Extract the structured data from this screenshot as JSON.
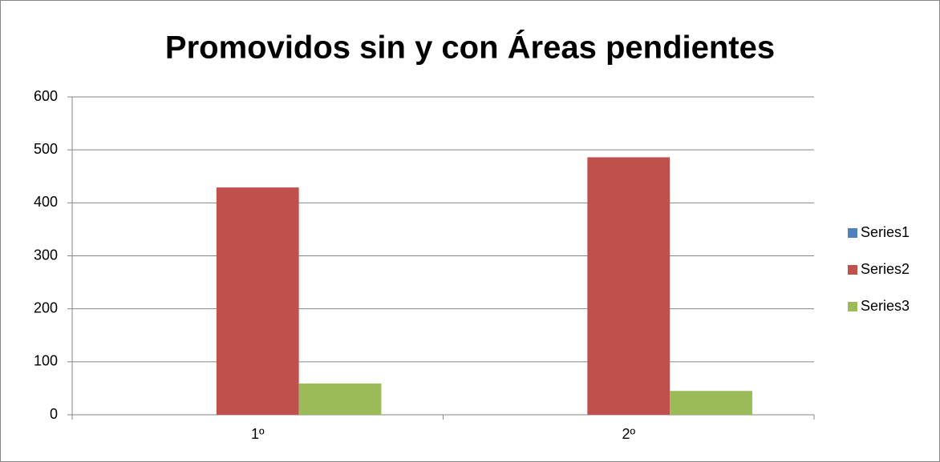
{
  "chart_data": {
    "type": "bar",
    "title": "Promovidos sin y con Áreas pendientes",
    "categories": [
      "1º",
      "2º"
    ],
    "series": [
      {
        "name": "Series1",
        "color": "#4f81bd",
        "values": [
          0,
          0
        ]
      },
      {
        "name": "Series2",
        "color": "#c0504d",
        "values": [
          429,
          486
        ]
      },
      {
        "name": "Series3",
        "color": "#9bbb59",
        "values": [
          59,
          45
        ]
      }
    ],
    "ylim": [
      0,
      600
    ],
    "yticks": [
      0,
      100,
      200,
      300,
      400,
      500,
      600
    ],
    "grid": true,
    "legend": "right"
  }
}
